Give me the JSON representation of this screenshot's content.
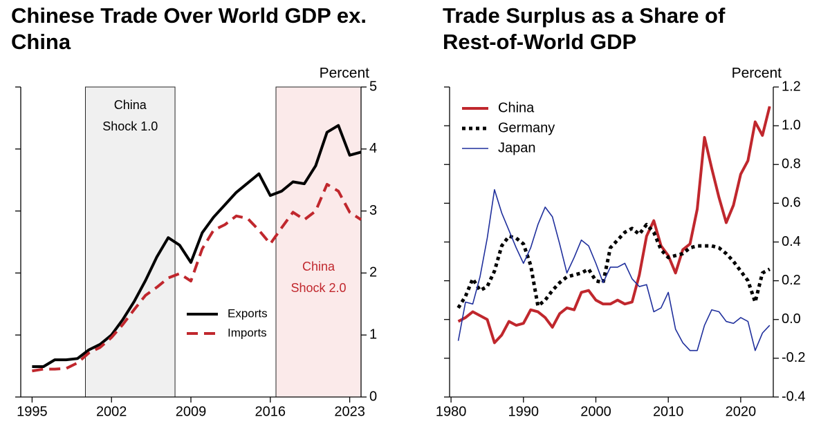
{
  "chart_data": [
    {
      "type": "line",
      "title": "Chinese Trade Over World GDP ex. China",
      "ylabel": "Percent",
      "x": [
        1995,
        1996,
        1997,
        1998,
        1999,
        2000,
        2001,
        2002,
        2003,
        2004,
        2005,
        2006,
        2007,
        2008,
        2009,
        2010,
        2011,
        2012,
        2013,
        2014,
        2015,
        2016,
        2017,
        2018,
        2019,
        2020,
        2021,
        2022,
        2023,
        2024
      ],
      "series": [
        {
          "name": "Exports",
          "color": "#000000",
          "style": "solid",
          "values": [
            0.49,
            0.49,
            0.6,
            0.6,
            0.62,
            0.76,
            0.85,
            1.0,
            1.25,
            1.54,
            1.88,
            2.26,
            2.57,
            2.45,
            2.17,
            2.65,
            2.9,
            3.1,
            3.3,
            3.45,
            3.6,
            3.25,
            3.32,
            3.47,
            3.44,
            3.73,
            4.27,
            4.38,
            3.9,
            3.95
          ]
        },
        {
          "name": "Imports",
          "color": "#c0272d",
          "style": "dashed",
          "values": [
            0.42,
            0.45,
            0.45,
            0.46,
            0.55,
            0.71,
            0.8,
            0.96,
            1.17,
            1.41,
            1.64,
            1.77,
            1.92,
            1.99,
            1.87,
            2.39,
            2.69,
            2.78,
            2.92,
            2.88,
            2.69,
            2.47,
            2.73,
            2.98,
            2.86,
            3.0,
            3.43,
            3.32,
            2.98,
            2.86
          ]
        }
      ],
      "shaded": [
        {
          "xlim": [
            1999.7,
            2007.6
          ],
          "label": [
            "China",
            "Shock 1.0"
          ],
          "color": "#f0f0f0",
          "text_color": "#000000"
        },
        {
          "xlim": [
            2016.5,
            2024
          ],
          "label": [
            "China",
            "Shock 2.0"
          ],
          "color": "#fbeaea",
          "text_color": "#c0272d"
        }
      ],
      "xlim": [
        1994,
        2024
      ],
      "xticks": [
        1995,
        2002,
        2009,
        2016,
        2023
      ],
      "ylim": [
        0,
        5
      ],
      "yticks": [
        0,
        1,
        2,
        3,
        4,
        5
      ],
      "legend": "center right"
    },
    {
      "type": "line",
      "title": "Trade Surplus as a Share of Rest-of-World GDP",
      "ylabel": "Percent",
      "x": [
        1981,
        1982,
        1983,
        1984,
        1985,
        1986,
        1987,
        1988,
        1989,
        1990,
        1991,
        1992,
        1993,
        1994,
        1995,
        1996,
        1997,
        1998,
        1999,
        2000,
        2001,
        2002,
        2003,
        2004,
        2005,
        2006,
        2007,
        2008,
        2009,
        2010,
        2011,
        2012,
        2013,
        2014,
        2015,
        2016,
        2017,
        2018,
        2019,
        2020,
        2021,
        2022,
        2023,
        2024
      ],
      "series": [
        {
          "name": "China",
          "color": "#c0272d",
          "style": "solid",
          "values": [
            -0.01,
            0.01,
            0.04,
            0.02,
            0.0,
            -0.12,
            -0.08,
            -0.01,
            -0.03,
            -0.02,
            0.05,
            0.04,
            0.01,
            -0.04,
            0.03,
            0.06,
            0.05,
            0.14,
            0.15,
            0.1,
            0.08,
            0.08,
            0.1,
            0.08,
            0.09,
            0.23,
            0.43,
            0.51,
            0.38,
            0.33,
            0.24,
            0.36,
            0.39,
            0.57,
            0.94,
            0.78,
            0.63,
            0.5,
            0.59,
            0.75,
            0.82,
            1.02,
            0.95,
            1.1
          ]
        },
        {
          "name": "Germany",
          "color": "#000000",
          "style": "dotted",
          "values": [
            0.06,
            0.12,
            0.21,
            0.15,
            0.17,
            0.25,
            0.38,
            0.43,
            0.42,
            0.39,
            0.28,
            0.07,
            0.1,
            0.15,
            0.19,
            0.22,
            0.23,
            0.24,
            0.26,
            0.2,
            0.19,
            0.37,
            0.41,
            0.45,
            0.47,
            0.44,
            0.49,
            0.45,
            0.36,
            0.32,
            0.33,
            0.34,
            0.37,
            0.38,
            0.38,
            0.38,
            0.37,
            0.34,
            0.3,
            0.25,
            0.2,
            0.09,
            0.24,
            0.26
          ]
        },
        {
          "name": "Japan",
          "color": "#1f2f9c",
          "style": "thin",
          "values": [
            -0.11,
            0.09,
            0.08,
            0.22,
            0.42,
            0.67,
            0.55,
            0.46,
            0.37,
            0.29,
            0.37,
            0.49,
            0.58,
            0.53,
            0.39,
            0.24,
            0.32,
            0.41,
            0.38,
            0.29,
            0.19,
            0.27,
            0.27,
            0.29,
            0.21,
            0.17,
            0.18,
            0.04,
            0.06,
            0.14,
            -0.05,
            -0.12,
            -0.16,
            -0.16,
            -0.03,
            0.05,
            0.04,
            -0.01,
            -0.02,
            0.01,
            -0.01,
            -0.16,
            -0.07,
            -0.03
          ]
        }
      ],
      "xlim": [
        1979.8,
        2024.5
      ],
      "xticks": [
        1980,
        1990,
        2000,
        2010,
        2020
      ],
      "ylim": [
        -0.4,
        1.2
      ],
      "yticks": [
        -0.4,
        -0.2,
        {
          "value": 0,
          "label": "0.0"
        },
        0.2,
        0.4,
        0.6,
        0.8,
        {
          "value": 1,
          "label": "1.0"
        },
        1.2
      ],
      "legend": "upper left"
    }
  ]
}
